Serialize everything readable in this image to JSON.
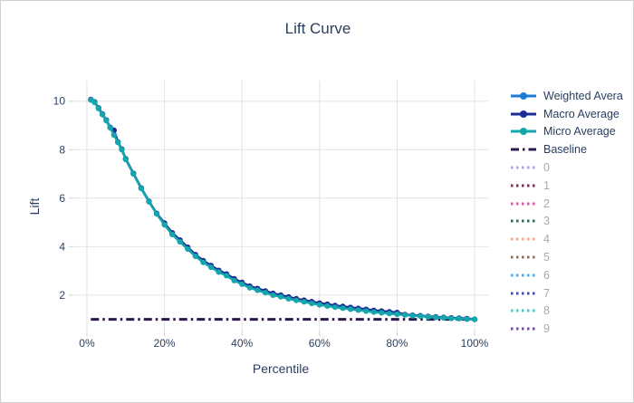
{
  "colors": {
    "text": "#2a3f5f",
    "grid": "#e4e4e4",
    "tick": "#cfcfcf",
    "legend_disabled_text": "#a8a8a8",
    "border": "#cfcfcf"
  },
  "chart_data": {
    "type": "line",
    "title": "Lift Curve",
    "xlabel": "Percentile",
    "ylabel": "Lift",
    "x_tick_labels": [
      "0%",
      "20%",
      "40%",
      "60%",
      "80%",
      "100%"
    ],
    "x_tick_values": [
      0,
      20,
      40,
      60,
      80,
      100
    ],
    "y_tick_values": [
      2,
      4,
      6,
      8,
      10
    ],
    "xlim": [
      -3.5,
      103.5
    ],
    "ylim": [
      0.5,
      10.85
    ],
    "grid": true,
    "legend_position": "right",
    "percentiles": [
      1,
      2,
      3,
      4,
      5,
      6,
      7,
      8,
      9,
      10,
      12,
      14,
      16,
      18,
      20,
      22,
      24,
      26,
      28,
      30,
      32,
      34,
      36,
      38,
      40,
      42,
      44,
      46,
      48,
      50,
      52,
      54,
      56,
      58,
      60,
      62,
      64,
      66,
      68,
      70,
      72,
      74,
      76,
      78,
      80,
      82,
      84,
      86,
      88,
      90,
      92,
      94,
      96,
      98,
      100
    ],
    "series": [
      {
        "label": "Weighted Avera",
        "color": "#1c7bd6",
        "style": "solid",
        "markers": true,
        "values": [
          10.06,
          9.96,
          9.71,
          9.46,
          9.21,
          8.91,
          8.61,
          8.31,
          8.01,
          7.61,
          7.01,
          6.41,
          5.86,
          5.36,
          4.93,
          4.53,
          4.23,
          3.93,
          3.63,
          3.38,
          3.18,
          2.98,
          2.83,
          2.63,
          2.48,
          2.33,
          2.23,
          2.13,
          2.03,
          1.96,
          1.88,
          1.81,
          1.75,
          1.69,
          1.63,
          1.58,
          1.53,
          1.49,
          1.45,
          1.41,
          1.37,
          1.33,
          1.3,
          1.27,
          1.24,
          1.19,
          1.16,
          1.14,
          1.11,
          1.09,
          1.07,
          1.05,
          1.04,
          1.02,
          1.0
        ]
      },
      {
        "label": "Macro Average",
        "color": "#1a2d96",
        "style": "solid",
        "markers": true,
        "values": [
          10.07,
          9.97,
          9.72,
          9.47,
          9.22,
          8.92,
          8.8,
          8.32,
          8.02,
          7.62,
          7.02,
          6.42,
          5.87,
          5.37,
          4.97,
          4.57,
          4.27,
          3.97,
          3.67,
          3.42,
          3.22,
          3.02,
          2.87,
          2.67,
          2.52,
          2.37,
          2.27,
          2.17,
          2.07,
          2.0,
          1.92,
          1.85,
          1.79,
          1.73,
          1.67,
          1.62,
          1.57,
          1.53,
          1.49,
          1.45,
          1.41,
          1.37,
          1.34,
          1.31,
          1.28,
          1.2,
          1.17,
          1.15,
          1.12,
          1.1,
          1.08,
          1.06,
          1.05,
          1.03,
          1.0
        ]
      },
      {
        "label": "Micro Average",
        "color": "#14a5ad",
        "style": "solid",
        "markers": true,
        "values": [
          10.05,
          9.95,
          9.7,
          9.45,
          9.2,
          8.9,
          8.6,
          8.3,
          8.0,
          7.6,
          7.0,
          6.4,
          5.85,
          5.35,
          4.9,
          4.5,
          4.2,
          3.9,
          3.6,
          3.35,
          3.15,
          2.95,
          2.8,
          2.6,
          2.45,
          2.3,
          2.2,
          2.1,
          2.0,
          1.93,
          1.85,
          1.78,
          1.72,
          1.66,
          1.6,
          1.55,
          1.5,
          1.46,
          1.42,
          1.38,
          1.34,
          1.3,
          1.27,
          1.24,
          1.21,
          1.18,
          1.15,
          1.13,
          1.1,
          1.08,
          1.06,
          1.04,
          1.03,
          1.01,
          1.0
        ]
      },
      {
        "label": "Baseline",
        "color": "#2d1850",
        "style": "dashdot",
        "markers": false,
        "constant_value": 1
      }
    ],
    "hidden_series": [
      {
        "label": "0",
        "color": "#b2a2e2",
        "style": "dotted"
      },
      {
        "label": "1",
        "color": "#7e2d54",
        "style": "dotted"
      },
      {
        "label": "2",
        "color": "#e055a5",
        "style": "dotted"
      },
      {
        "label": "3",
        "color": "#35695a",
        "style": "dotted"
      },
      {
        "label": "4",
        "color": "#f4a58d",
        "style": "dotted"
      },
      {
        "label": "5",
        "color": "#8f6f62",
        "style": "dotted"
      },
      {
        "label": "6",
        "color": "#55a8e8",
        "style": "dotted"
      },
      {
        "label": "7",
        "color": "#4646c0",
        "style": "dotted"
      },
      {
        "label": "8",
        "color": "#4cc8c8",
        "style": "dotted"
      },
      {
        "label": "9",
        "color": "#6e4aa0",
        "style": "dotted"
      }
    ]
  }
}
